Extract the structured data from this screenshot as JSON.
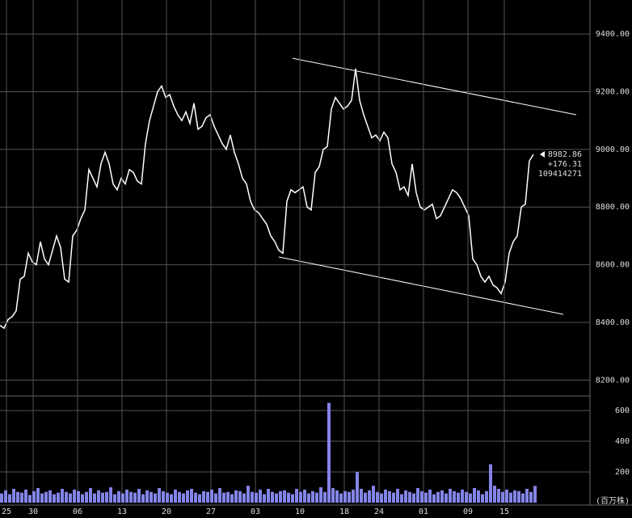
{
  "chart_data": [
    {
      "type": "line",
      "color": "#ffffff",
      "grid": true,
      "x": [
        0,
        1,
        2,
        3,
        4,
        5,
        6,
        7,
        8,
        9,
        10,
        11,
        12,
        13,
        14,
        15,
        16,
        17,
        18,
        19,
        20,
        21,
        22,
        23,
        24,
        25,
        26,
        27,
        28,
        29,
        30,
        31,
        32,
        33,
        34,
        35,
        36,
        37,
        38,
        39,
        40,
        41,
        42,
        43,
        44,
        45,
        46,
        47,
        48,
        49,
        50,
        51,
        52,
        53,
        54,
        55,
        56,
        57,
        58,
        59,
        60,
        61,
        62,
        63,
        64,
        65,
        66,
        67,
        68,
        69,
        70,
        71,
        72,
        73,
        74,
        75,
        76,
        77,
        78,
        79,
        80,
        81,
        82,
        83,
        84,
        85,
        86,
        87,
        88,
        89,
        90,
        91,
        92,
        93,
        94,
        95,
        96,
        97,
        98,
        99,
        100,
        101,
        102,
        103,
        104,
        105,
        106,
        107,
        108,
        109,
        110,
        111,
        112,
        113,
        114,
        115,
        116,
        117,
        118,
        119,
        120,
        121,
        122,
        123,
        124,
        125,
        126,
        127,
        128,
        129,
        130,
        131,
        132
      ],
      "values": [
        8390,
        8380,
        8410,
        8420,
        8440,
        8550,
        8560,
        8640,
        8610,
        8600,
        8680,
        8620,
        8600,
        8650,
        8700,
        8660,
        8550,
        8540,
        8700,
        8720,
        8760,
        8790,
        8930,
        8900,
        8870,
        8950,
        8990,
        8950,
        8880,
        8860,
        8900,
        8880,
        8930,
        8920,
        8890,
        8880,
        9020,
        9100,
        9150,
        9200,
        9220,
        9180,
        9190,
        9150,
        9120,
        9100,
        9130,
        9090,
        9160,
        9070,
        9080,
        9110,
        9120,
        9080,
        9050,
        9020,
        9000,
        9050,
        8990,
        8950,
        8900,
        8880,
        8820,
        8790,
        8780,
        8760,
        8740,
        8700,
        8680,
        8650,
        8640,
        8820,
        8860,
        8850,
        8860,
        8870,
        8800,
        8790,
        8920,
        8940,
        9000,
        9010,
        9140,
        9180,
        9160,
        9140,
        9150,
        9170,
        9280,
        9170,
        9120,
        9080,
        9040,
        9050,
        9030,
        9060,
        9040,
        8950,
        8920,
        8860,
        8870,
        8840,
        8950,
        8850,
        8800,
        8790,
        8800,
        8810,
        8760,
        8770,
        8800,
        8830,
        8860,
        8850,
        8830,
        8800,
        8770,
        8620,
        8600,
        8560,
        8540,
        8560,
        8530,
        8520,
        8500,
        8540,
        8640,
        8680,
        8700,
        8800,
        8810,
        8960,
        8982.86
      ],
      "xlim": [
        0,
        146
      ],
      "ylim": [
        8145,
        9518
      ],
      "yticks": [
        {
          "value": 8200,
          "label": "8200.00"
        },
        {
          "value": 8400,
          "label": "8400.00"
        },
        {
          "value": 8600,
          "label": "8600.00"
        },
        {
          "value": 8800,
          "label": "8800.00"
        },
        {
          "value": 9000,
          "label": "9000.00"
        },
        {
          "value": 9200,
          "label": "9200.00"
        },
        {
          "value": 9400,
          "label": "9400.00"
        }
      ],
      "trend_lines": [
        {
          "x": [
            72.4,
            142.6
          ],
          "y": [
            9316,
            9120
          ]
        },
        {
          "x": [
            69,
            139.4
          ],
          "y": [
            8627,
            8428
          ]
        }
      ],
      "annotations": [
        "8982.86",
        "+176.31",
        "109414271"
      ]
    },
    {
      "type": "bar",
      "color": "#8484e8",
      "grid": true,
      "y_label": "(百万株)",
      "x": [
        0,
        1,
        2,
        3,
        4,
        5,
        6,
        7,
        8,
        9,
        10,
        11,
        12,
        13,
        14,
        15,
        16,
        17,
        18,
        19,
        20,
        21,
        22,
        23,
        24,
        25,
        26,
        27,
        28,
        29,
        30,
        31,
        32,
        33,
        34,
        35,
        36,
        37,
        38,
        39,
        40,
        41,
        42,
        43,
        44,
        45,
        46,
        47,
        48,
        49,
        50,
        51,
        52,
        53,
        54,
        55,
        56,
        57,
        58,
        59,
        60,
        61,
        62,
        63,
        64,
        65,
        66,
        67,
        68,
        69,
        70,
        71,
        72,
        73,
        74,
        75,
        76,
        77,
        78,
        79,
        80,
        81,
        82,
        83,
        84,
        85,
        86,
        87,
        88,
        89,
        90,
        91,
        92,
        93,
        94,
        95,
        96,
        97,
        98,
        99,
        100,
        101,
        102,
        103,
        104,
        105,
        106,
        107,
        108,
        109,
        110,
        111,
        112,
        113,
        114,
        115,
        116,
        117,
        118,
        119,
        120,
        121,
        122,
        123,
        124,
        125,
        126,
        127,
        128,
        129,
        130,
        131,
        132
      ],
      "values": [
        60,
        80,
        55,
        90,
        70,
        65,
        85,
        50,
        75,
        95,
        60,
        70,
        80,
        55,
        65,
        90,
        70,
        60,
        85,
        75,
        55,
        70,
        95,
        60,
        80,
        65,
        70,
        100,
        55,
        75,
        60,
        85,
        70,
        65,
        90,
        55,
        80,
        70,
        60,
        95,
        75,
        65,
        55,
        85,
        70,
        60,
        80,
        90,
        65,
        55,
        75,
        70,
        85,
        60,
        95,
        65,
        70,
        55,
        80,
        75,
        60,
        110,
        70,
        65,
        85,
        55,
        90,
        70,
        60,
        75,
        80,
        65,
        55,
        90,
        70,
        85,
        60,
        75,
        65,
        100,
        70,
        650,
        95,
        80,
        60,
        75,
        70,
        85,
        200,
        90,
        65,
        80,
        110,
        70,
        60,
        85,
        75,
        65,
        90,
        55,
        80,
        70,
        60,
        95,
        75,
        65,
        85,
        55,
        70,
        80,
        60,
        90,
        75,
        65,
        85,
        70,
        60,
        95,
        80,
        55,
        75,
        250,
        110,
        90,
        70,
        85,
        65,
        80,
        75,
        60,
        90,
        70,
        109
      ],
      "xlim": [
        0,
        146
      ],
      "ylim": [
        0,
        695
      ],
      "yticks": [
        200,
        400,
        600
      ],
      "xticks": [
        {
          "value": 1.6,
          "label": "25"
        },
        {
          "value": 8.2,
          "label": "30"
        },
        {
          "value": 19.2,
          "label": "06"
        },
        {
          "value": 30.2,
          "label": "13"
        },
        {
          "value": 41.2,
          "label": "20"
        },
        {
          "value": 52.2,
          "label": "27"
        },
        {
          "value": 63.2,
          "label": "03"
        },
        {
          "value": 74.2,
          "label": "10"
        },
        {
          "value": 85.2,
          "label": "18"
        },
        {
          "value": 93.8,
          "label": "24"
        },
        {
          "value": 104.8,
          "label": "01"
        },
        {
          "value": 115.8,
          "label": "09"
        },
        {
          "value": 124.8,
          "label": "15"
        }
      ]
    }
  ]
}
